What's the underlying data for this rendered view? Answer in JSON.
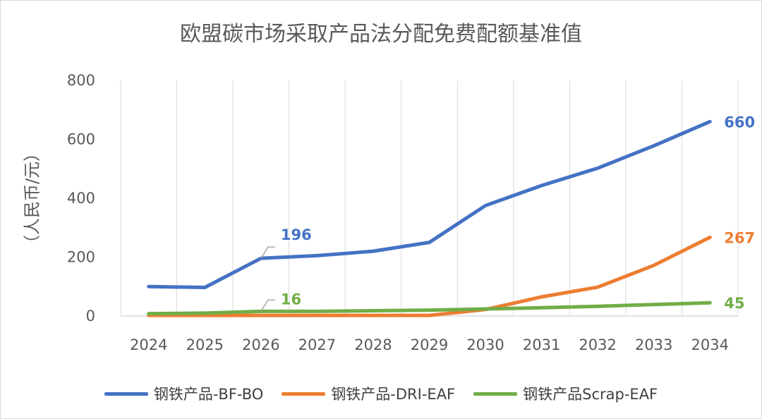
{
  "chart_data": {
    "type": "line",
    "title": "欧盟碳市场采取产品法分配免费配额基准值",
    "xlabel": "",
    "ylabel": "（人民币/元）",
    "ylim": [
      0,
      800
    ],
    "yticks": [
      0,
      200,
      400,
      600,
      800
    ],
    "categories": [
      "2024",
      "2025",
      "2026",
      "2027",
      "2028",
      "2029",
      "2030",
      "2031",
      "2032",
      "2033",
      "2034"
    ],
    "grid": "vertical",
    "legend_position": "bottom",
    "series": [
      {
        "name": "钢铁产品-BF-BO",
        "color": "#4472c4",
        "values": [
          100,
          97,
          196,
          205,
          220,
          250,
          375,
          443,
          502,
          578,
          660
        ]
      },
      {
        "name": "钢铁产品-DRI-EAF",
        "color": "#ed7d31",
        "values": [
          2,
          2,
          2,
          2,
          2,
          2,
          22,
          65,
          98,
          172,
          267
        ]
      },
      {
        "name": "钢铁产品Scrap-EAF",
        "color": "#70ad47",
        "values": [
          8,
          10,
          16,
          16,
          18,
          20,
          24,
          28,
          33,
          39,
          45
        ]
      }
    ],
    "annotations": [
      {
        "series": 0,
        "index": 2,
        "text": "196",
        "callout": true
      },
      {
        "series": 0,
        "index": 10,
        "text": "660",
        "callout": false
      },
      {
        "series": 1,
        "index": 10,
        "text": "267",
        "callout": false
      },
      {
        "series": 2,
        "index": 2,
        "text": "16",
        "callout": true
      },
      {
        "series": 2,
        "index": 10,
        "text": "45",
        "callout": false
      }
    ]
  }
}
